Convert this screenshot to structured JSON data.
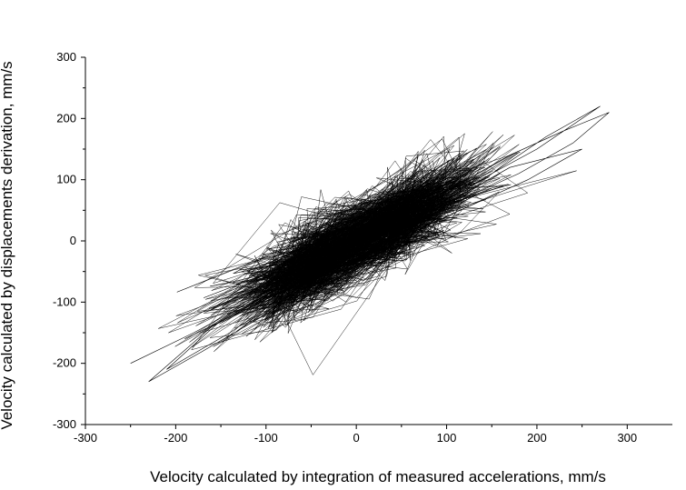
{
  "chart_data": {
    "type": "line",
    "title": "",
    "xlabel": "Velocity calculated by integration of measured accelerations, mm/s",
    "ylabel": "Velocity calculated by displacements derivation, mm/s",
    "xlim": [
      -300,
      350
    ],
    "ylim": [
      -300,
      300
    ],
    "xticks": [
      -300,
      -200,
      -100,
      0,
      100,
      200,
      300
    ],
    "xtick_labels": [
      "-300",
      "-200",
      "-100",
      "0",
      "100",
      "200",
      "300"
    ],
    "yticks": [
      -300,
      -200,
      -100,
      0,
      100,
      200,
      300
    ],
    "ytick_labels": [
      "-300",
      "-200",
      "-100",
      "0",
      "100",
      "200",
      "300"
    ],
    "grid": false,
    "legend": "none",
    "line_color": "#000000",
    "series": [
      {
        "x": [
          -250,
          -180,
          -130,
          -60,
          -10,
          40,
          110,
          170,
          230,
          280,
          240,
          180,
          120,
          60,
          0,
          -50,
          -110,
          -160,
          -230,
          -170,
          -100,
          -40,
          20,
          80,
          150,
          200,
          270,
          210,
          140,
          90,
          20,
          -30,
          -90,
          -150,
          -210,
          -140,
          -80,
          -20,
          50,
          110,
          170,
          250,
          190,
          130,
          70,
          10,
          -40,
          -120,
          -190
        ],
        "y": [
          -200,
          -150,
          -110,
          -60,
          -10,
          40,
          90,
          140,
          180,
          210,
          160,
          110,
          70,
          20,
          -20,
          -60,
          -100,
          -140,
          -230,
          -180,
          -120,
          -60,
          0,
          50,
          110,
          150,
          220,
          170,
          100,
          60,
          10,
          -30,
          -80,
          -130,
          -210,
          -150,
          -90,
          -40,
          30,
          70,
          120,
          150,
          100,
          60,
          20,
          -10,
          -50,
          -110,
          -160
        ]
      }
    ]
  }
}
